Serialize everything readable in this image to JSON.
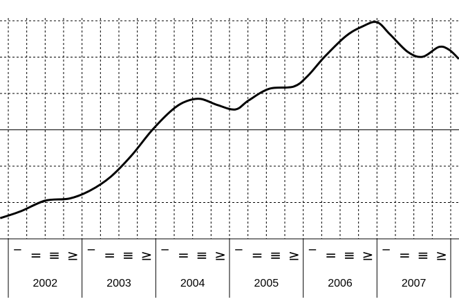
{
  "chart_data": {
    "type": "line",
    "years": [
      2002,
      2003,
      2004,
      2005,
      2006,
      2007
    ],
    "quarter_labels": [
      "‾",
      "=",
      "≡",
      "≥"
    ],
    "x": [
      2001.89,
      2002.17,
      2002.5,
      2002.83,
      2003.11,
      2003.39,
      2003.67,
      2003.95,
      2004.23,
      2004.42,
      2004.61,
      2004.84,
      2005.08,
      2005.26,
      2005.54,
      2005.87,
      2006.06,
      2006.29,
      2006.58,
      2006.81,
      2007.0,
      2007.18,
      2007.42,
      2007.62,
      2007.84,
      2007.98,
      2008.11
    ],
    "values": [
      0.57,
      0.76,
      1.05,
      1.11,
      1.33,
      1.71,
      2.29,
      2.99,
      3.56,
      3.79,
      3.85,
      3.68,
      3.56,
      3.81,
      4.13,
      4.19,
      4.48,
      5.01,
      5.58,
      5.85,
      5.96,
      5.62,
      5.14,
      5.01,
      5.28,
      5.2,
      4.95
    ],
    "color": "#000000",
    "xlim": [
      2001.8875,
      2008.1125
    ],
    "ylim": [
      0,
      6
    ],
    "yticks": [
      1,
      2,
      4,
      5,
      6
    ],
    "hline": 3,
    "grid": true
  }
}
